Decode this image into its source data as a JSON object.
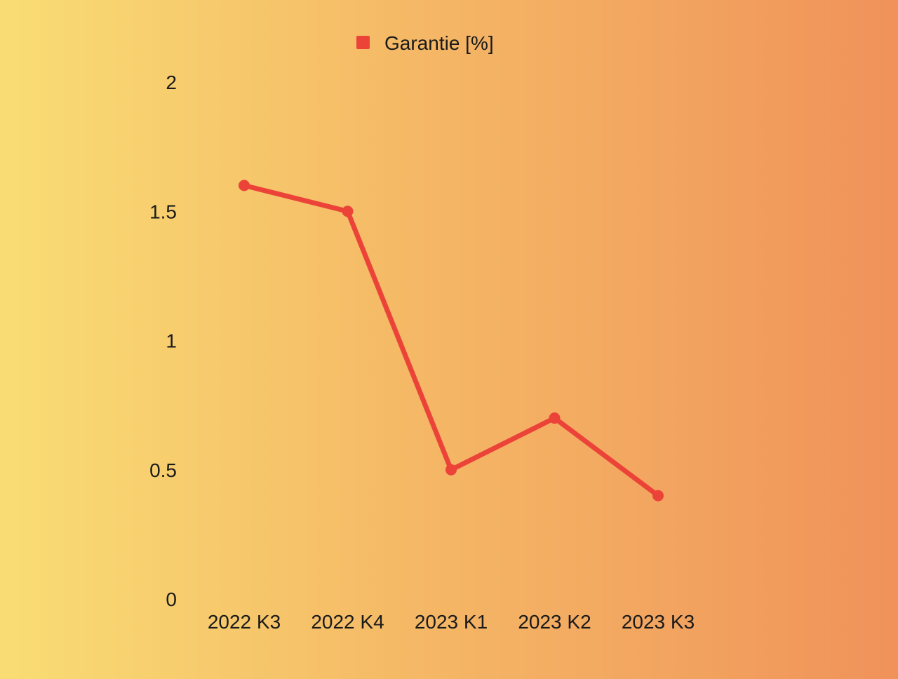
{
  "chart_data": {
    "type": "line",
    "categories": [
      "2022 K3",
      "2022 K4",
      "2023 K1",
      "2023 K2",
      "2023 K3"
    ],
    "series": [
      {
        "name": "Garantie [%]",
        "values": [
          1.6,
          1.5,
          0.5,
          0.7,
          0.4
        ]
      }
    ],
    "yticks": [
      "0",
      "0.5",
      "1",
      "1.5",
      "2"
    ],
    "ylim": [
      0,
      2
    ],
    "legend_position": "top-center",
    "grid": false,
    "colors": {
      "series": "#ec4339"
    }
  }
}
